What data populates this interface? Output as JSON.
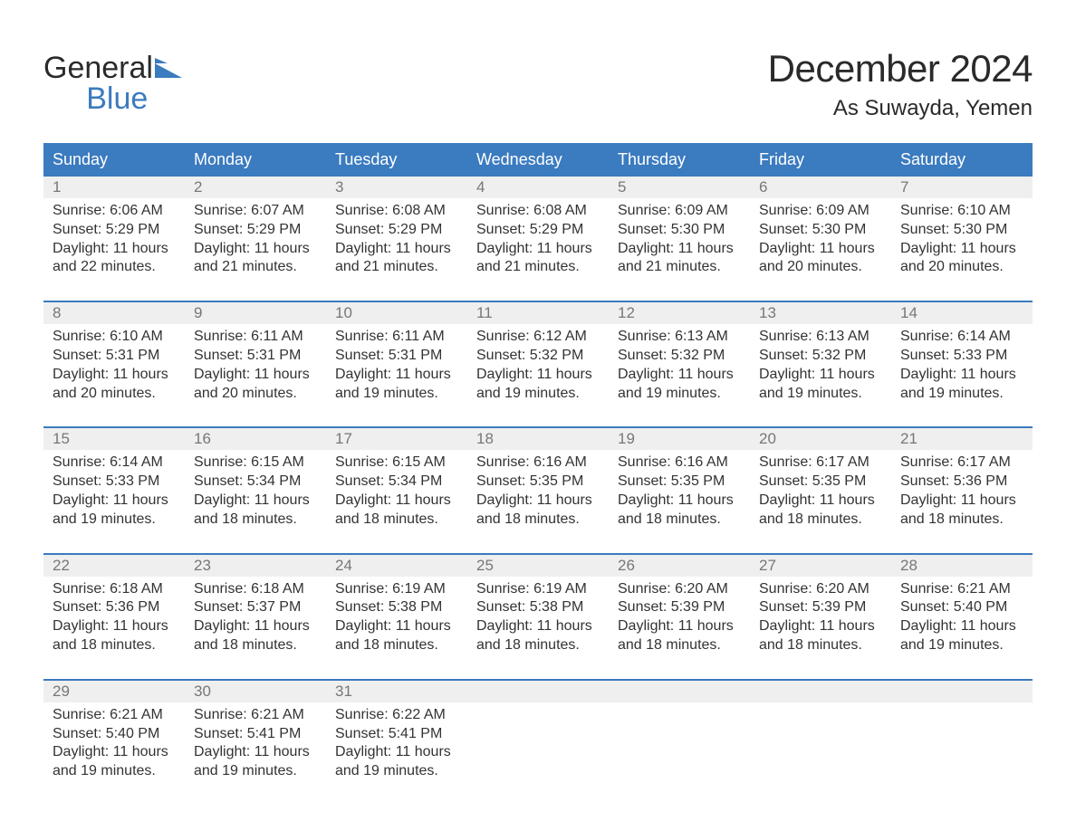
{
  "brand": {
    "part1": "General",
    "part2": "Blue"
  },
  "title": "December 2024",
  "location": "As Suwayda, Yemen",
  "colors": {
    "accent": "#3b7bbf",
    "header_bg": "#3b7bbf",
    "daynum_bg": "#efefef",
    "text": "#333333",
    "muted": "#777777"
  },
  "day_headers": [
    "Sunday",
    "Monday",
    "Tuesday",
    "Wednesday",
    "Thursday",
    "Friday",
    "Saturday"
  ],
  "weeks": [
    [
      {
        "num": "1",
        "sunrise": "Sunrise: 6:06 AM",
        "sunset": "Sunset: 5:29 PM",
        "day1": "Daylight: 11 hours",
        "day2": "and 22 minutes."
      },
      {
        "num": "2",
        "sunrise": "Sunrise: 6:07 AM",
        "sunset": "Sunset: 5:29 PM",
        "day1": "Daylight: 11 hours",
        "day2": "and 21 minutes."
      },
      {
        "num": "3",
        "sunrise": "Sunrise: 6:08 AM",
        "sunset": "Sunset: 5:29 PM",
        "day1": "Daylight: 11 hours",
        "day2": "and 21 minutes."
      },
      {
        "num": "4",
        "sunrise": "Sunrise: 6:08 AM",
        "sunset": "Sunset: 5:29 PM",
        "day1": "Daylight: 11 hours",
        "day2": "and 21 minutes."
      },
      {
        "num": "5",
        "sunrise": "Sunrise: 6:09 AM",
        "sunset": "Sunset: 5:30 PM",
        "day1": "Daylight: 11 hours",
        "day2": "and 21 minutes."
      },
      {
        "num": "6",
        "sunrise": "Sunrise: 6:09 AM",
        "sunset": "Sunset: 5:30 PM",
        "day1": "Daylight: 11 hours",
        "day2": "and 20 minutes."
      },
      {
        "num": "7",
        "sunrise": "Sunrise: 6:10 AM",
        "sunset": "Sunset: 5:30 PM",
        "day1": "Daylight: 11 hours",
        "day2": "and 20 minutes."
      }
    ],
    [
      {
        "num": "8",
        "sunrise": "Sunrise: 6:10 AM",
        "sunset": "Sunset: 5:31 PM",
        "day1": "Daylight: 11 hours",
        "day2": "and 20 minutes."
      },
      {
        "num": "9",
        "sunrise": "Sunrise: 6:11 AM",
        "sunset": "Sunset: 5:31 PM",
        "day1": "Daylight: 11 hours",
        "day2": "and 20 minutes."
      },
      {
        "num": "10",
        "sunrise": "Sunrise: 6:11 AM",
        "sunset": "Sunset: 5:31 PM",
        "day1": "Daylight: 11 hours",
        "day2": "and 19 minutes."
      },
      {
        "num": "11",
        "sunrise": "Sunrise: 6:12 AM",
        "sunset": "Sunset: 5:32 PM",
        "day1": "Daylight: 11 hours",
        "day2": "and 19 minutes."
      },
      {
        "num": "12",
        "sunrise": "Sunrise: 6:13 AM",
        "sunset": "Sunset: 5:32 PM",
        "day1": "Daylight: 11 hours",
        "day2": "and 19 minutes."
      },
      {
        "num": "13",
        "sunrise": "Sunrise: 6:13 AM",
        "sunset": "Sunset: 5:32 PM",
        "day1": "Daylight: 11 hours",
        "day2": "and 19 minutes."
      },
      {
        "num": "14",
        "sunrise": "Sunrise: 6:14 AM",
        "sunset": "Sunset: 5:33 PM",
        "day1": "Daylight: 11 hours",
        "day2": "and 19 minutes."
      }
    ],
    [
      {
        "num": "15",
        "sunrise": "Sunrise: 6:14 AM",
        "sunset": "Sunset: 5:33 PM",
        "day1": "Daylight: 11 hours",
        "day2": "and 19 minutes."
      },
      {
        "num": "16",
        "sunrise": "Sunrise: 6:15 AM",
        "sunset": "Sunset: 5:34 PM",
        "day1": "Daylight: 11 hours",
        "day2": "and 18 minutes."
      },
      {
        "num": "17",
        "sunrise": "Sunrise: 6:15 AM",
        "sunset": "Sunset: 5:34 PM",
        "day1": "Daylight: 11 hours",
        "day2": "and 18 minutes."
      },
      {
        "num": "18",
        "sunrise": "Sunrise: 6:16 AM",
        "sunset": "Sunset: 5:35 PM",
        "day1": "Daylight: 11 hours",
        "day2": "and 18 minutes."
      },
      {
        "num": "19",
        "sunrise": "Sunrise: 6:16 AM",
        "sunset": "Sunset: 5:35 PM",
        "day1": "Daylight: 11 hours",
        "day2": "and 18 minutes."
      },
      {
        "num": "20",
        "sunrise": "Sunrise: 6:17 AM",
        "sunset": "Sunset: 5:35 PM",
        "day1": "Daylight: 11 hours",
        "day2": "and 18 minutes."
      },
      {
        "num": "21",
        "sunrise": "Sunrise: 6:17 AM",
        "sunset": "Sunset: 5:36 PM",
        "day1": "Daylight: 11 hours",
        "day2": "and 18 minutes."
      }
    ],
    [
      {
        "num": "22",
        "sunrise": "Sunrise: 6:18 AM",
        "sunset": "Sunset: 5:36 PM",
        "day1": "Daylight: 11 hours",
        "day2": "and 18 minutes."
      },
      {
        "num": "23",
        "sunrise": "Sunrise: 6:18 AM",
        "sunset": "Sunset: 5:37 PM",
        "day1": "Daylight: 11 hours",
        "day2": "and 18 minutes."
      },
      {
        "num": "24",
        "sunrise": "Sunrise: 6:19 AM",
        "sunset": "Sunset: 5:38 PM",
        "day1": "Daylight: 11 hours",
        "day2": "and 18 minutes."
      },
      {
        "num": "25",
        "sunrise": "Sunrise: 6:19 AM",
        "sunset": "Sunset: 5:38 PM",
        "day1": "Daylight: 11 hours",
        "day2": "and 18 minutes."
      },
      {
        "num": "26",
        "sunrise": "Sunrise: 6:20 AM",
        "sunset": "Sunset: 5:39 PM",
        "day1": "Daylight: 11 hours",
        "day2": "and 18 minutes."
      },
      {
        "num": "27",
        "sunrise": "Sunrise: 6:20 AM",
        "sunset": "Sunset: 5:39 PM",
        "day1": "Daylight: 11 hours",
        "day2": "and 18 minutes."
      },
      {
        "num": "28",
        "sunrise": "Sunrise: 6:21 AM",
        "sunset": "Sunset: 5:40 PM",
        "day1": "Daylight: 11 hours",
        "day2": "and 19 minutes."
      }
    ],
    [
      {
        "num": "29",
        "sunrise": "Sunrise: 6:21 AM",
        "sunset": "Sunset: 5:40 PM",
        "day1": "Daylight: 11 hours",
        "day2": "and 19 minutes."
      },
      {
        "num": "30",
        "sunrise": "Sunrise: 6:21 AM",
        "sunset": "Sunset: 5:41 PM",
        "day1": "Daylight: 11 hours",
        "day2": "and 19 minutes."
      },
      {
        "num": "31",
        "sunrise": "Sunrise: 6:22 AM",
        "sunset": "Sunset: 5:41 PM",
        "day1": "Daylight: 11 hours",
        "day2": "and 19 minutes."
      },
      null,
      null,
      null,
      null
    ]
  ]
}
